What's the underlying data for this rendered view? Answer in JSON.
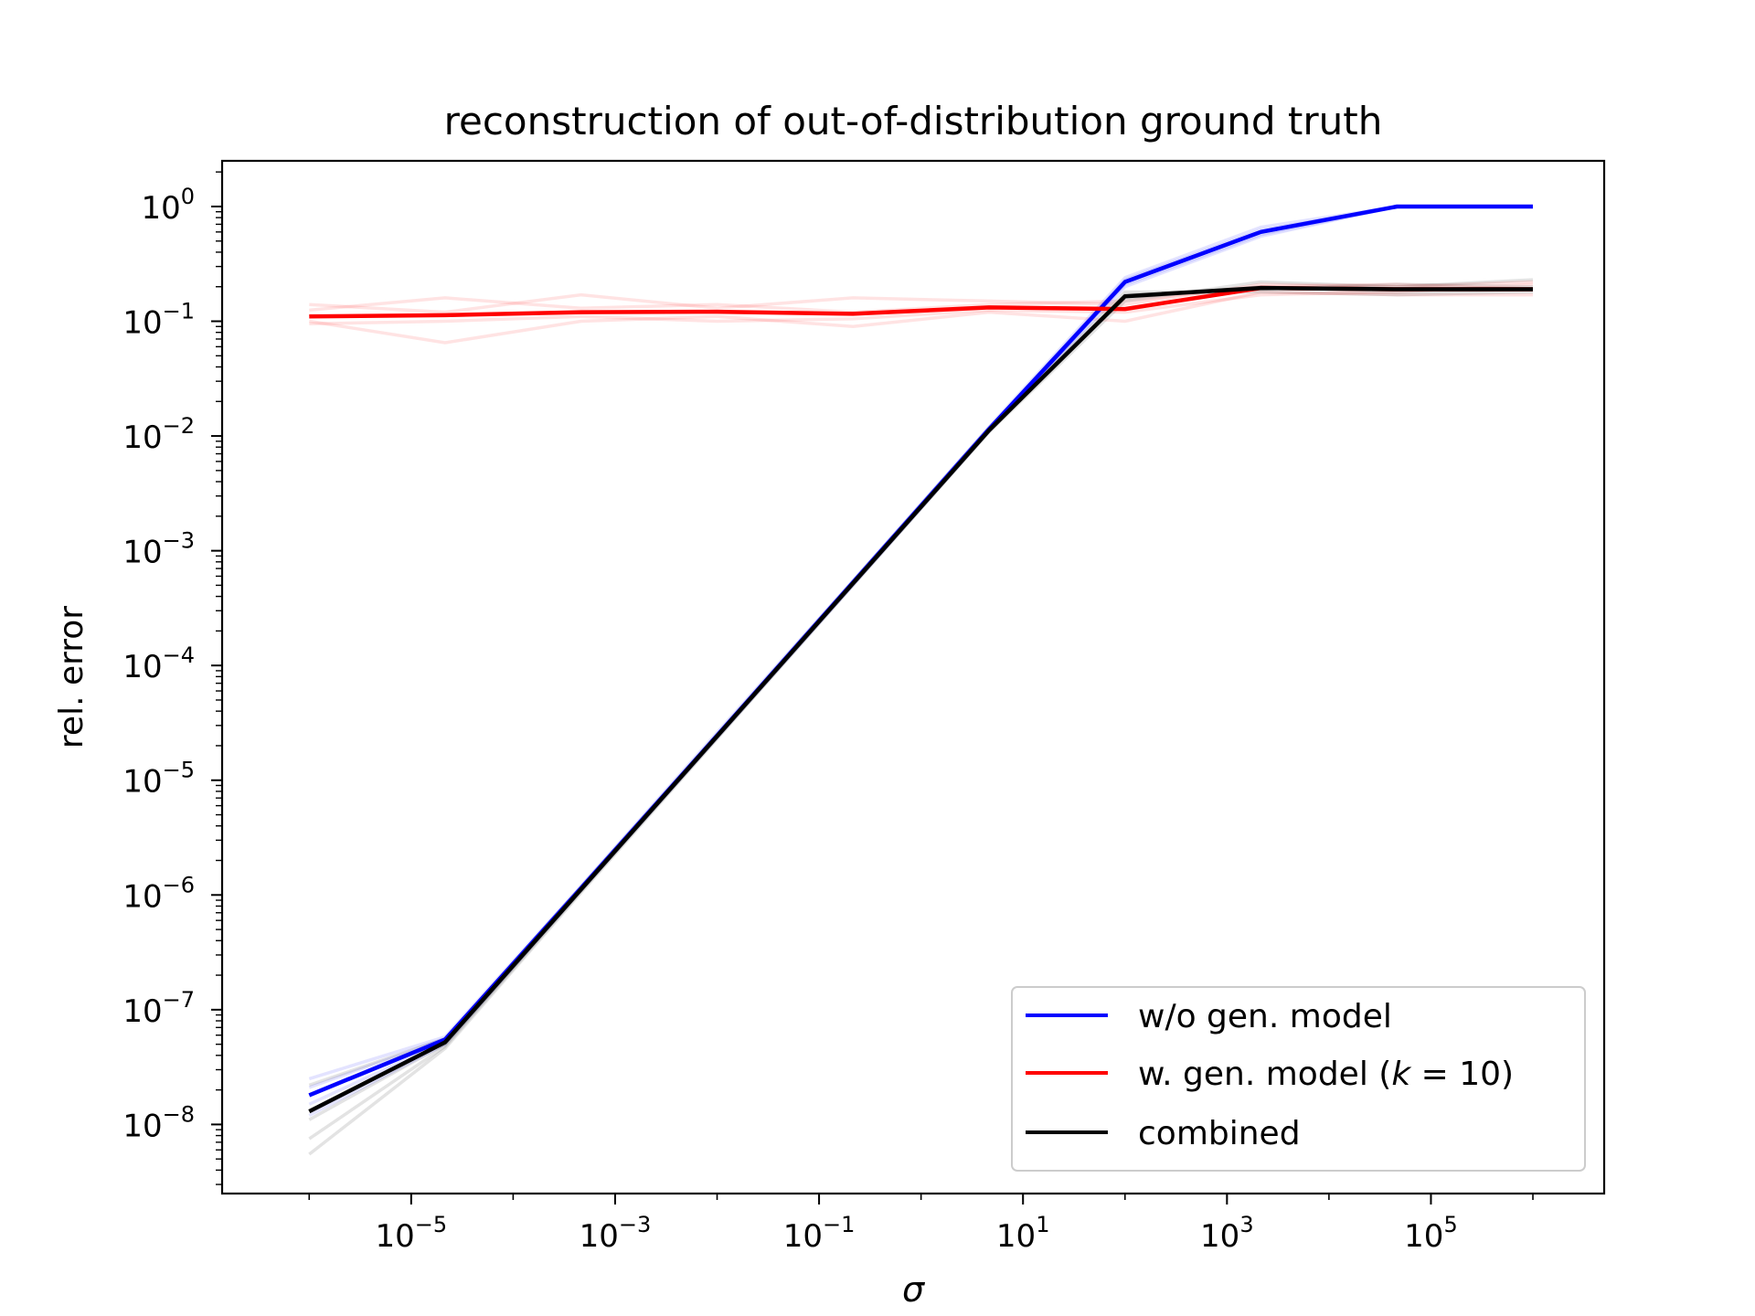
{
  "chart_data": {
    "type": "line",
    "title": "reconstruction of out-of-distribution ground truth",
    "xlabel": "σ",
    "ylabel": "rel. error",
    "xscale": "log",
    "yscale": "log",
    "xlim": [
      1.4e-07,
      5000000.0
    ],
    "ylim": [
      2.5e-09,
      2.5
    ],
    "x_ticks": [
      {
        "exp": "−5",
        "value": 1e-05
      },
      {
        "exp": "−3",
        "value": 0.001
      },
      {
        "exp": "−1",
        "value": 0.1
      },
      {
        "exp": "1",
        "value": 10.0
      },
      {
        "exp": "3",
        "value": 1000.0
      },
      {
        "exp": "5",
        "value": 100000.0
      }
    ],
    "y_ticks": [
      {
        "exp": "0",
        "value": 1
      },
      {
        "exp": "−1",
        "value": 0.1
      },
      {
        "exp": "−2",
        "value": 0.01
      },
      {
        "exp": "−3",
        "value": 0.001
      },
      {
        "exp": "−4",
        "value": 0.0001
      },
      {
        "exp": "−5",
        "value": 1e-05
      },
      {
        "exp": "−6",
        "value": 1e-06
      },
      {
        "exp": "−7",
        "value": 1e-07
      },
      {
        "exp": "−8",
        "value": 1e-08
      }
    ],
    "tick_base": "10",
    "x": [
      1e-06,
      2.15e-05,
      0.000464,
      0.01,
      0.215,
      4.64,
      100,
      2150,
      46400,
      1000000
    ],
    "series": [
      {
        "name": "w/o gen. model",
        "color": "#0000ff",
        "values": [
          1.8e-08,
          5.5e-08,
          1.15e-06,
          2.45e-05,
          0.00053,
          0.0115,
          0.22,
          0.6,
          1.0,
          1.0
        ],
        "runs": [
          [
            2.5e-08,
            5.8e-08,
            1.2e-06,
            2.6e-05,
            0.00055,
            0.012,
            0.24,
            0.66,
            1.0,
            1.0
          ],
          [
            2.1e-08,
            5.6e-08,
            1.16e-06,
            2.5e-05,
            0.00053,
            0.0116,
            0.23,
            0.62,
            1.0,
            1.0
          ],
          [
            1.5e-08,
            5.3e-08,
            1.12e-06,
            2.4e-05,
            0.00051,
            0.0112,
            0.21,
            0.57,
            1.0,
            1.0
          ],
          [
            1.2e-08,
            5e-08,
            1.1e-06,
            2.35e-05,
            0.0005,
            0.011,
            0.2,
            0.55,
            1.0,
            1.0
          ]
        ]
      },
      {
        "name": "w. gen. model (",
        "name_italic": "k",
        "name_rest": " = 10)",
        "color": "#ff0000",
        "values": [
          0.11,
          0.113,
          0.12,
          0.121,
          0.116,
          0.132,
          0.128,
          0.195,
          0.19,
          0.19
        ],
        "runs": [
          [
            0.14,
            0.12,
            0.17,
            0.13,
            0.16,
            0.15,
            0.14,
            0.21,
            0.2,
            0.22
          ],
          [
            0.1,
            0.065,
            0.1,
            0.11,
            0.09,
            0.12,
            0.1,
            0.18,
            0.17,
            0.17
          ],
          [
            0.125,
            0.16,
            0.13,
            0.14,
            0.12,
            0.14,
            0.15,
            0.2,
            0.21,
            0.19
          ],
          [
            0.095,
            0.1,
            0.11,
            0.1,
            0.105,
            0.125,
            0.12,
            0.17,
            0.18,
            0.21
          ]
        ]
      },
      {
        "name": "combined",
        "color": "#000000",
        "values": [
          1.3e-08,
          5.2e-08,
          1.12e-06,
          2.42e-05,
          0.00052,
          0.0112,
          0.165,
          0.195,
          0.19,
          0.19
        ],
        "runs": [
          [
            5.5e-09,
            4.6e-08,
            1.05e-06,
            2.3e-05,
            0.0005,
            0.0108,
            0.15,
            0.22,
            0.2,
            0.23
          ],
          [
            7.5e-09,
            4.8e-08,
            1.08e-06,
            2.35e-05,
            0.00051,
            0.011,
            0.17,
            0.19,
            0.21,
            0.2
          ],
          [
            1.1e-08,
            5e-08,
            1.1e-06,
            2.4e-05,
            0.000515,
            0.0112,
            0.16,
            0.2,
            0.18,
            0.19
          ],
          [
            2.2e-08,
            5.6e-08,
            1.15e-06,
            2.5e-05,
            0.00053,
            0.0115,
            0.18,
            0.18,
            0.17,
            0.18
          ]
        ]
      }
    ],
    "legend_position": "bottom-right",
    "grid": false
  }
}
